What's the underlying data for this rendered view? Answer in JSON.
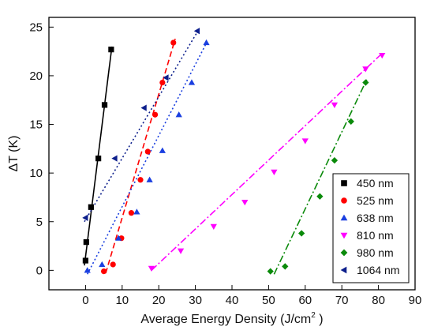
{
  "chart_data": {
    "type": "scatter",
    "xlabel": "Average Energy Density (J/cm",
    "xlabel_sup": "2",
    "xlabel_end": " )",
    "ylabel": "ΔT (K)",
    "xlim": [
      -10,
      90
    ],
    "ylim": [
      -2,
      26
    ],
    "xticks": [
      0,
      10,
      20,
      30,
      40,
      50,
      60,
      70,
      80,
      90
    ],
    "yticks": [
      0,
      5,
      10,
      15,
      20,
      25
    ],
    "grid": false,
    "legend_position": "bottom-right",
    "series": [
      {
        "name": "450 nm",
        "color": "#000000",
        "marker": "square",
        "dash": "solid",
        "points": [
          [
            0,
            1.0
          ],
          [
            0.2,
            2.9
          ],
          [
            1.5,
            6.5
          ],
          [
            3.5,
            11.5
          ],
          [
            5.2,
            17.0
          ],
          [
            7.0,
            22.7
          ]
        ],
        "fit": [
          [
            -0.3,
            0.5
          ],
          [
            7.2,
            23.0
          ]
        ]
      },
      {
        "name": "525 nm",
        "color": "#ff0000",
        "marker": "circle",
        "dash": "dash",
        "points": [
          [
            5.0,
            -0.1
          ],
          [
            7.5,
            0.6
          ],
          [
            9.8,
            3.3
          ],
          [
            12.5,
            5.9
          ],
          [
            15.0,
            9.3
          ],
          [
            17.0,
            12.2
          ],
          [
            19.0,
            16.0
          ],
          [
            21.0,
            19.3
          ],
          [
            24.0,
            23.4
          ]
        ],
        "fit": [
          [
            5.5,
            -0.3
          ],
          [
            24.5,
            23.8
          ]
        ]
      },
      {
        "name": "638 nm",
        "color": "#1a3fe0",
        "marker": "triangle-up",
        "dash": "dot",
        "points": [
          [
            0.5,
            0.0
          ],
          [
            4.5,
            0.6
          ],
          [
            9.0,
            3.3
          ],
          [
            14.0,
            6.0
          ],
          [
            17.5,
            9.3
          ],
          [
            21.0,
            12.3
          ],
          [
            25.5,
            16.0
          ],
          [
            29.0,
            19.3
          ],
          [
            33.0,
            23.4
          ]
        ],
        "fit": [
          [
            0.5,
            -0.4
          ],
          [
            33.2,
            23.5
          ]
        ]
      },
      {
        "name": "810 nm",
        "color": "#ff00ff",
        "marker": "triangle-down",
        "dash": "dashdot",
        "points": [
          [
            18.0,
            0.2
          ],
          [
            26.0,
            2.0
          ],
          [
            35.0,
            4.5
          ],
          [
            43.5,
            7.0
          ],
          [
            51.5,
            10.1
          ],
          [
            60.0,
            13.3
          ],
          [
            68.0,
            17.0
          ],
          [
            76.5,
            20.7
          ],
          [
            81.0,
            22.1
          ]
        ],
        "fit": [
          [
            18.0,
            0.0
          ],
          [
            81.0,
            22.3
          ]
        ]
      },
      {
        "name": "980 nm",
        "color": "#0a8a0a",
        "marker": "diamond",
        "dash": "dashdot",
        "points": [
          [
            50.5,
            -0.1
          ],
          [
            54.5,
            0.4
          ],
          [
            59.0,
            3.8
          ],
          [
            64.0,
            7.6
          ],
          [
            68.0,
            11.3
          ],
          [
            72.5,
            15.3
          ],
          [
            76.5,
            19.3
          ]
        ],
        "fit": [
          [
            51.5,
            -0.4
          ],
          [
            76.8,
            19.6
          ]
        ]
      },
      {
        "name": "1064 nm",
        "color": "#0d1f8c",
        "marker": "triangle-left",
        "dash": "dot",
        "points": [
          [
            0.0,
            5.4
          ],
          [
            8.0,
            11.5
          ],
          [
            16.0,
            16.7
          ],
          [
            22.0,
            19.8
          ],
          [
            30.5,
            24.6
          ]
        ],
        "fit": [
          [
            -0.3,
            5.0
          ],
          [
            31.0,
            24.8
          ]
        ]
      }
    ]
  }
}
